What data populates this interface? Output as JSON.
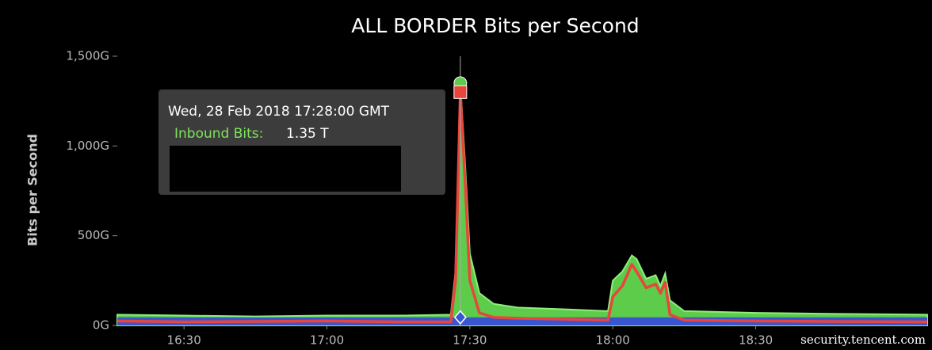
{
  "chart_data": {
    "type": "area",
    "title": "ALL BORDER Bits per Second",
    "y_label": "Bits per Second",
    "x": [
      "16:16",
      "16:30",
      "16:45",
      "17:00",
      "17:15",
      "17:26",
      "17:27",
      "17:28",
      "17:29",
      "17:30",
      "17:32",
      "17:35",
      "17:40",
      "17:50",
      "17:59",
      "18:00",
      "18:02",
      "18:04",
      "18:05",
      "18:07",
      "18:09",
      "18:10",
      "18:11",
      "18:12",
      "18:15",
      "18:30",
      "18:45",
      "19:06"
    ],
    "series": [
      {
        "color": "#5ccc4a",
        "values": [
          60,
          55,
          50,
          55,
          55,
          60,
          300,
          1350,
          900,
          400,
          180,
          120,
          100,
          90,
          80,
          250,
          300,
          390,
          370,
          260,
          280,
          220,
          290,
          140,
          80,
          70,
          65,
          60
        ]
      },
      {
        "color": "#3a55d0",
        "values": [
          45,
          45,
          45,
          45,
          45,
          45,
          45,
          45,
          45,
          45,
          45,
          45,
          45,
          45,
          45,
          45,
          45,
          45,
          45,
          45,
          45,
          45,
          45,
          45,
          45,
          45,
          45,
          45
        ]
      },
      {
        "color": "#e8453c",
        "values": [
          25,
          20,
          22,
          25,
          20,
          20,
          250,
          1300,
          800,
          250,
          70,
          45,
          40,
          35,
          30,
          160,
          220,
          340,
          300,
          210,
          230,
          180,
          240,
          60,
          30,
          25,
          22,
          20
        ]
      }
    ],
    "xlim": [
      "16:16",
      "19:07"
    ],
    "xticks": [
      "16:30",
      "17:00",
      "17:30",
      "18:00",
      "18:30"
    ],
    "ylim": [
      0,
      1500
    ],
    "yticks": [
      {
        "value": 0,
        "label": "0G"
      },
      {
        "value": 500,
        "label": "500G"
      },
      {
        "value": 1000,
        "label": "1,000G"
      },
      {
        "value": 1500,
        "label": "1,500G"
      }
    ],
    "grid": false,
    "tooltip": {
      "title": "Wed, 28 Feb 2018 17:28:00 GMT",
      "label": "Inbound Bits:",
      "value": "1.35 T"
    },
    "watermark": "security.tencent.com"
  }
}
